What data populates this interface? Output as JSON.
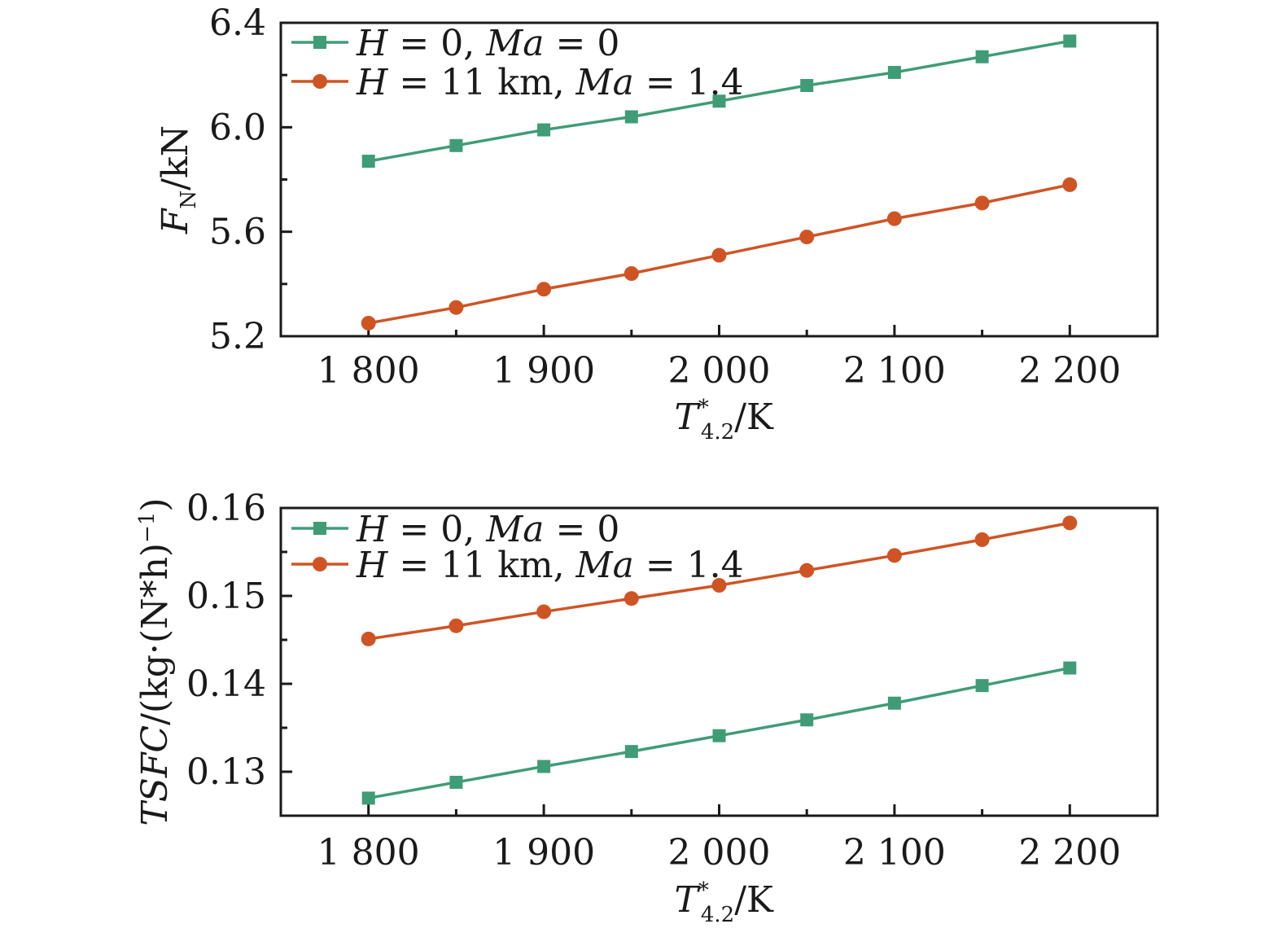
{
  "chart_data": [
    {
      "type": "line",
      "title": "",
      "xlabel": "T*_{4.2}/K",
      "xlabel_parts": {
        "base": "T",
        "sup": "*",
        "sub": "4.2",
        "unit": "/K"
      },
      "ylabel": "F_N/kN",
      "ylabel_parts": {
        "base": "F",
        "sub": "N",
        "unit": "/kN"
      },
      "xlim": [
        1750,
        2250
      ],
      "ylim": [
        5.2,
        6.4
      ],
      "xticks": [
        1800,
        1900,
        2000,
        2100,
        2200
      ],
      "xtick_labels": [
        "1 800",
        "1 900",
        "2 000",
        "2 100",
        "2 200"
      ],
      "xminor": [
        1850,
        1950,
        2050,
        2150
      ],
      "yticks": [
        5.2,
        5.6,
        6.0,
        6.4
      ],
      "ytick_labels": [
        "5.2",
        "5.6",
        "6.0",
        "6.4"
      ],
      "yminor": [
        5.4,
        5.8,
        6.2
      ],
      "grid": false,
      "legend_position": "top-left",
      "x": [
        1800,
        1850,
        1900,
        1950,
        2000,
        2050,
        2100,
        2150,
        2200
      ],
      "series": [
        {
          "name": "H = 0, Ma = 0",
          "legend_parts": [
            [
              "H",
              true
            ],
            [
              " = 0, ",
              false
            ],
            [
              "Ma",
              true
            ],
            [
              " = 0",
              false
            ]
          ],
          "color": "#3f9c77",
          "marker": "square",
          "values": [
            5.87,
            5.93,
            5.99,
            6.04,
            6.1,
            6.16,
            6.21,
            6.27,
            6.33
          ]
        },
        {
          "name": "H = 11 km, Ma = 1.4",
          "legend_parts": [
            [
              "H",
              true
            ],
            [
              " = 11 km, ",
              false
            ],
            [
              "Ma",
              true
            ],
            [
              " = 1.4",
              false
            ]
          ],
          "color": "#cf5424",
          "marker": "circle",
          "values": [
            5.25,
            5.31,
            5.38,
            5.44,
            5.51,
            5.58,
            5.65,
            5.71,
            5.78
          ]
        }
      ]
    },
    {
      "type": "line",
      "title": "",
      "xlabel": "T*_{4.2}/K",
      "xlabel_parts": {
        "base": "T",
        "sup": "*",
        "sub": "4.2",
        "unit": "/K"
      },
      "ylabel": "TSFC/(kg·(N*h)^-1)",
      "ylabel_parts": {
        "base": "TSFC",
        "unit": "/(kg·(N*h)",
        "sup": "−1",
        "close": ")"
      },
      "xlim": [
        1750,
        2250
      ],
      "ylim": [
        0.125,
        0.16
      ],
      "xticks": [
        1800,
        1900,
        2000,
        2100,
        2200
      ],
      "xtick_labels": [
        "1 800",
        "1 900",
        "2 000",
        "2 100",
        "2 200"
      ],
      "xminor": [
        1850,
        1950,
        2050,
        2150
      ],
      "yticks": [
        0.13,
        0.14,
        0.15,
        0.16
      ],
      "ytick_labels": [
        "0.13",
        "0.14",
        "0.15",
        "0.16"
      ],
      "yminor": [
        0.135,
        0.145,
        0.155
      ],
      "grid": false,
      "legend_position": "top-left",
      "x": [
        1800,
        1850,
        1900,
        1950,
        2000,
        2050,
        2100,
        2150,
        2200
      ],
      "series": [
        {
          "name": "H = 0, Ma = 0",
          "legend_parts": [
            [
              "H",
              true
            ],
            [
              " = 0, ",
              false
            ],
            [
              "Ma",
              true
            ],
            [
              " = 0",
              false
            ]
          ],
          "color": "#3f9c77",
          "marker": "square",
          "values": [
            0.127,
            0.1288,
            0.1306,
            0.1323,
            0.1341,
            0.1359,
            0.1378,
            0.1398,
            0.1418
          ]
        },
        {
          "name": "H = 11 km, Ma = 1.4",
          "legend_parts": [
            [
              "H",
              true
            ],
            [
              " = 11 km, ",
              false
            ],
            [
              "Ma",
              true
            ],
            [
              " = 1.4",
              false
            ]
          ],
          "color": "#cf5424",
          "marker": "circle",
          "values": [
            0.1451,
            0.1466,
            0.1482,
            0.1497,
            0.1512,
            0.1529,
            0.1546,
            0.1564,
            0.1583
          ]
        }
      ]
    }
  ]
}
